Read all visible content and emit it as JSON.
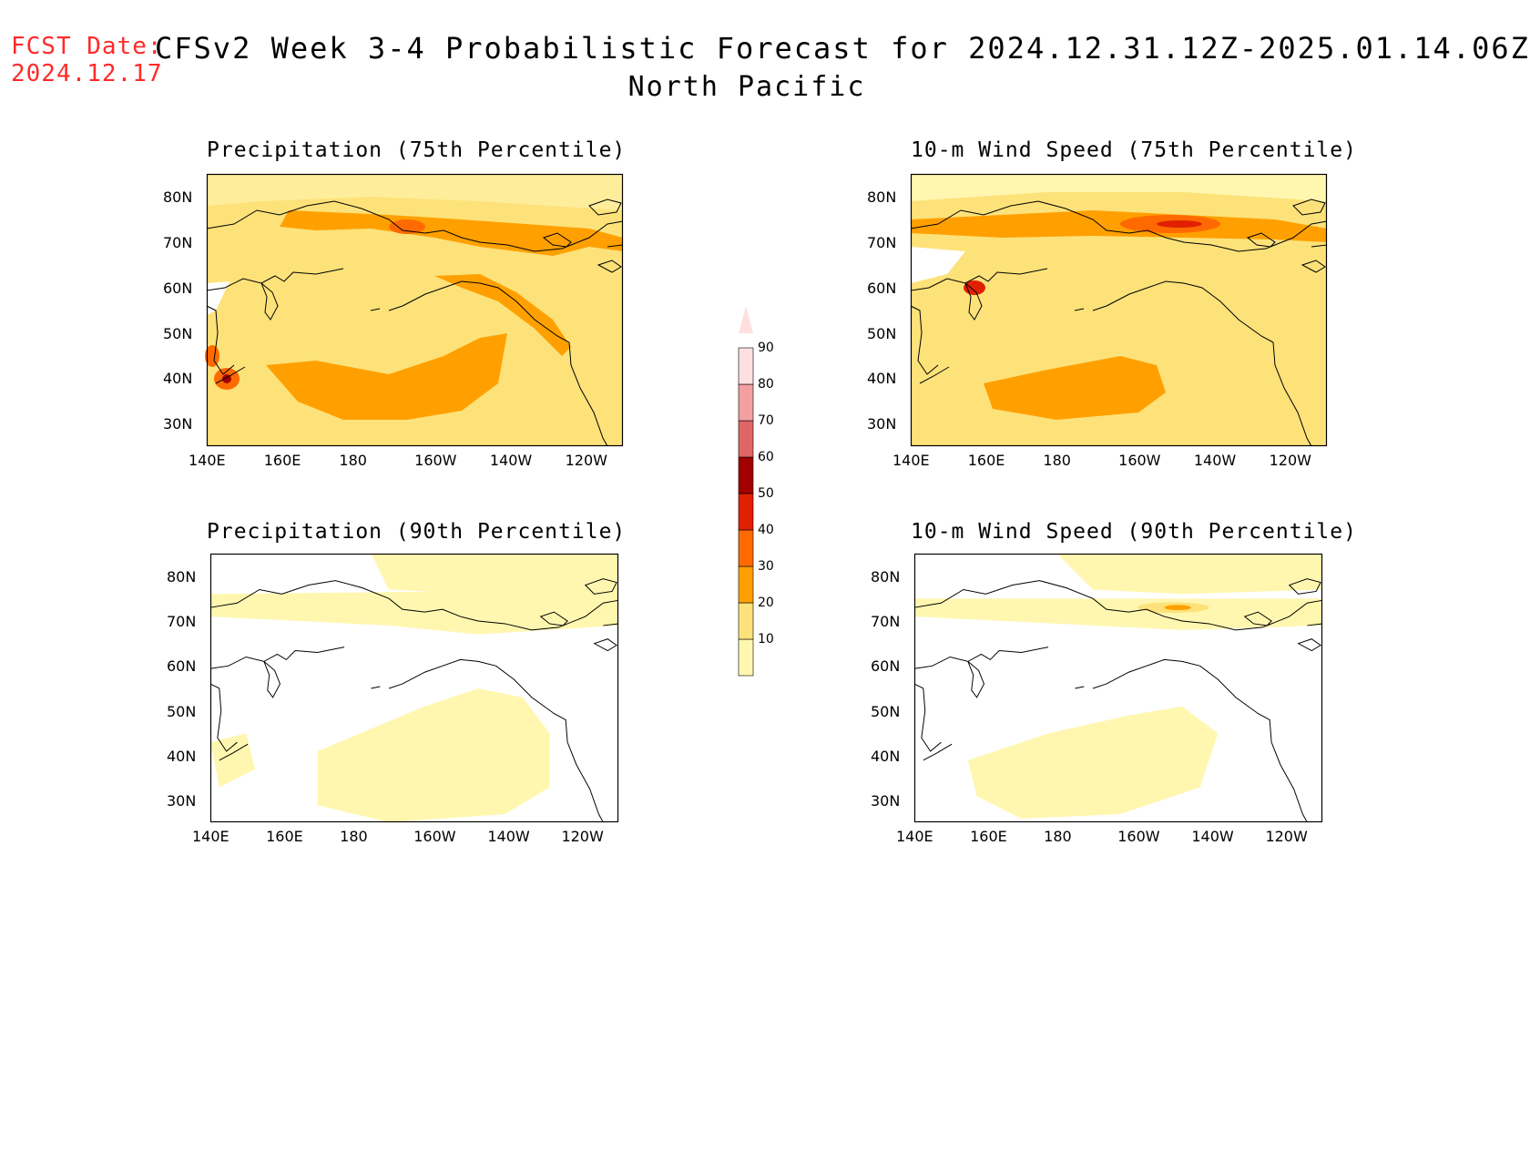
{
  "header": {
    "fcst_label": "FCST Date:",
    "fcst_date": "2024.12.17",
    "title": "CFSv2 Week 3-4 Probabilistic Forecast for 2024.12.31.12Z-2025.01.14.06Z",
    "subtitle": "North Pacific"
  },
  "axes": {
    "lat_labels": [
      "80N",
      "70N",
      "60N",
      "50N",
      "40N",
      "30N"
    ],
    "lon_labels": [
      "140E",
      "160E",
      "180",
      "160W",
      "140W",
      "120W"
    ]
  },
  "panels": [
    {
      "id": "precip75",
      "title": "Precipitation (75th Percentile)"
    },
    {
      "id": "wind75",
      "title": "10-m Wind Speed (75th Percentile)"
    },
    {
      "id": "precip90",
      "title": "Precipitation (90th Percentile)"
    },
    {
      "id": "wind90",
      "title": "10-m Wind Speed (90th Percentile)"
    }
  ],
  "colorbar": {
    "levels": [
      "10",
      "20",
      "30",
      "40",
      "50",
      "60",
      "70",
      "80",
      "90"
    ],
    "colors": [
      "#fff7b0",
      "#fde27a",
      "#ffa000",
      "#ff6a00",
      "#e02000",
      "#a00000",
      "#e06666",
      "#f4a0a0",
      "#ffe0e0"
    ]
  }
}
